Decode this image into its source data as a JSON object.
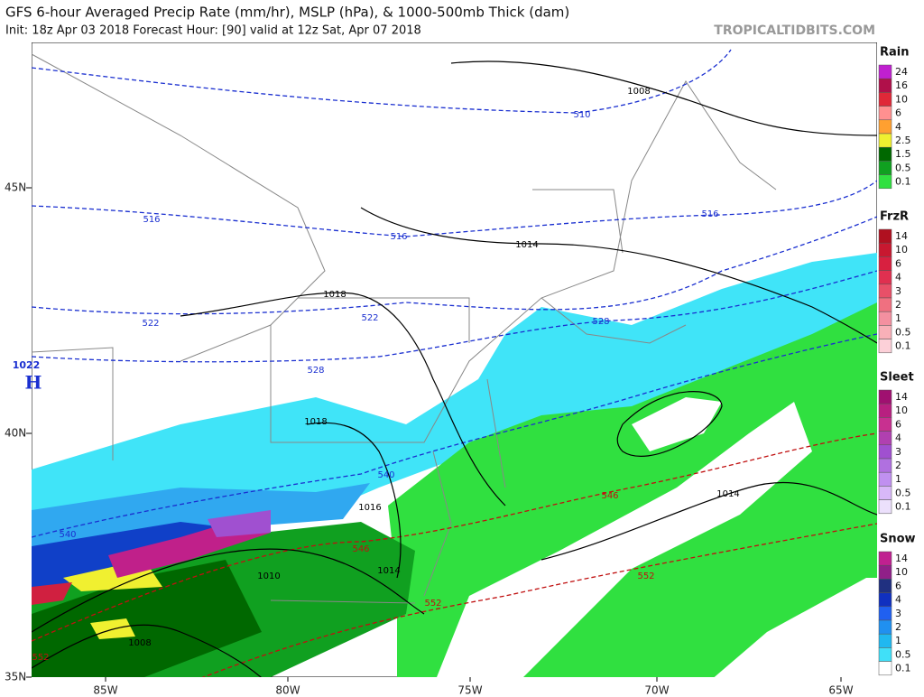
{
  "header": {
    "title": "GFS 6-hour Averaged Precip Rate (mm/hr), MSLP (hPa), & 1000-500mb Thick (dam)",
    "subtitle": "Init: 18z Apr 03 2018   Forecast Hour: [90]   valid at 12z Sat, Apr 07 2018",
    "watermark": "TROPICALTIDBITS.COM"
  },
  "map": {
    "lat_labels": [
      "45N",
      "40N",
      "35N"
    ],
    "lon_labels": [
      "85W",
      "80W",
      "75W",
      "70W",
      "65W"
    ],
    "high": {
      "pressure": "1022",
      "symbol": "H"
    },
    "contour_labels": [
      {
        "text": "1008",
        "color": "#000"
      },
      {
        "text": "510",
        "color": "#1a2fd0"
      },
      {
        "text": "516",
        "color": "#1a2fd0"
      },
      {
        "text": "516",
        "color": "#1a2fd0"
      },
      {
        "text": "516",
        "color": "#1a2fd0"
      },
      {
        "text": "1014",
        "color": "#000"
      },
      {
        "text": "1018",
        "color": "#000"
      },
      {
        "text": "522",
        "color": "#1a2fd0"
      },
      {
        "text": "522",
        "color": "#1a2fd0"
      },
      {
        "text": "528",
        "color": "#1a2fd0"
      },
      {
        "text": "528",
        "color": "#1a2fd0"
      },
      {
        "text": "1018",
        "color": "#000"
      },
      {
        "text": "540",
        "color": "#1a2fd0"
      },
      {
        "text": "1016",
        "color": "#000"
      },
      {
        "text": "546",
        "color": "#c01010"
      },
      {
        "text": "546",
        "color": "#c01010"
      },
      {
        "text": "1014",
        "color": "#000"
      },
      {
        "text": "1010",
        "color": "#000"
      },
      {
        "text": "552",
        "color": "#c01010"
      },
      {
        "text": "552",
        "color": "#c01010"
      },
      {
        "text": "1008",
        "color": "#000"
      },
      {
        "text": "1014",
        "color": "#000"
      },
      {
        "text": "540",
        "color": "#1a2fd0"
      },
      {
        "text": "552",
        "color": "#c01010"
      }
    ]
  },
  "legends": [
    {
      "title": "Rain",
      "items": [
        {
          "label": "24",
          "color": "#c020d0"
        },
        {
          "label": "16",
          "color": "#b0104a"
        },
        {
          "label": "10",
          "color": "#e02838"
        },
        {
          "label": "6",
          "color": "#ff9090"
        },
        {
          "label": "4",
          "color": "#ffa030"
        },
        {
          "label": "2.5",
          "color": "#f0f030"
        },
        {
          "label": "1.5",
          "color": "#006800"
        },
        {
          "label": "0.5",
          "color": "#10a020"
        },
        {
          "label": "0.1",
          "color": "#30e040"
        }
      ]
    },
    {
      "title": "FrzR",
      "items": [
        {
          "label": "14",
          "color": "#b01020"
        },
        {
          "label": "10",
          "color": "#c81830"
        },
        {
          "label": "6",
          "color": "#d82040"
        },
        {
          "label": "4",
          "color": "#e03050"
        },
        {
          "label": "3",
          "color": "#e85068"
        },
        {
          "label": "2",
          "color": "#f07080"
        },
        {
          "label": "1",
          "color": "#f490a0"
        },
        {
          "label": "0.5",
          "color": "#f8b0b8"
        },
        {
          "label": "0.1",
          "color": "#fcd0d8"
        }
      ]
    },
    {
      "title": "Sleet",
      "items": [
        {
          "label": "14",
          "color": "#a01070"
        },
        {
          "label": "10",
          "color": "#b82080"
        },
        {
          "label": "6",
          "color": "#c83090"
        },
        {
          "label": "4",
          "color": "#b040b0"
        },
        {
          "label": "3",
          "color": "#a050d0"
        },
        {
          "label": "2",
          "color": "#b070e0"
        },
        {
          "label": "1",
          "color": "#c090f0"
        },
        {
          "label": "0.5",
          "color": "#d8b8f8"
        },
        {
          "label": "0.1",
          "color": "#ece0fc"
        }
      ]
    },
    {
      "title": "Snow",
      "items": [
        {
          "label": "14",
          "color": "#c02090"
        },
        {
          "label": "10",
          "color": "#902088"
        },
        {
          "label": "6",
          "color": "#203080"
        },
        {
          "label": "4",
          "color": "#1030c0"
        },
        {
          "label": "3",
          "color": "#2060f0"
        },
        {
          "label": "2",
          "color": "#2090f0"
        },
        {
          "label": "1",
          "color": "#20b8f0"
        },
        {
          "label": "0.5",
          "color": "#40e0f8"
        },
        {
          "label": "0.1",
          "color": "#ffffff"
        }
      ]
    }
  ]
}
